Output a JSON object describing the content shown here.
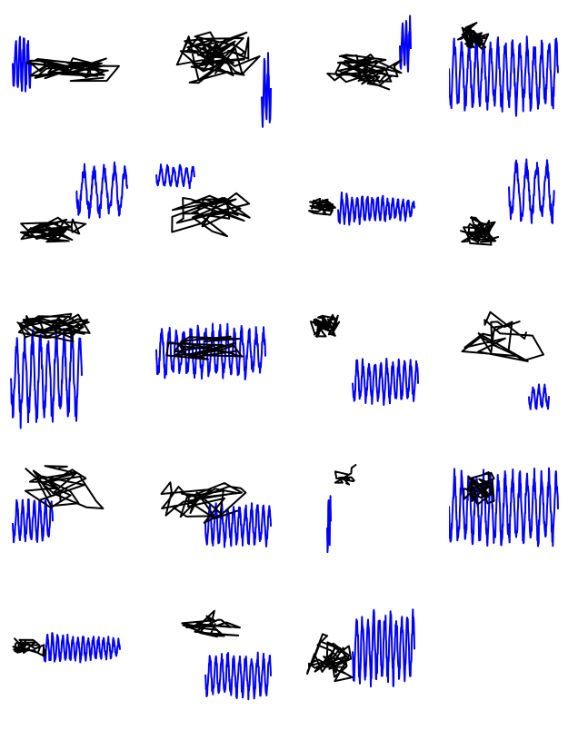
{
  "figure": {
    "rows": 5,
    "columns": 4,
    "panel_count": 19,
    "background_color": "#ffffff",
    "trajectory_color": "#000000",
    "signal_color": "#0000ff"
  },
  "panels": [
    {
      "id": 1,
      "motif": "dense-loop",
      "signal": "left-short",
      "trajectory": "tangle-horizontal"
    },
    {
      "id": 2,
      "motif": "star-loop",
      "signal": "right-tail",
      "trajectory": "tangle-wide"
    },
    {
      "id": 3,
      "motif": "loops-chain",
      "signal": "right-spike",
      "trajectory": "loops-horizontal"
    },
    {
      "id": 4,
      "motif": "tight-knot",
      "signal": "wide-band",
      "trajectory": "knot-top-left"
    },
    {
      "id": 5,
      "motif": "diagonal",
      "signal": "right-mid",
      "trajectory": "diagonal-cluster"
    },
    {
      "id": 6,
      "motif": "diagonal",
      "signal": "left-top",
      "trajectory": "diagonal-down"
    },
    {
      "id": 7,
      "motif": "small-knot",
      "signal": "decay-band",
      "trajectory": "knot-left"
    },
    {
      "id": 8,
      "motif": "dense-knot",
      "signal": "right-top",
      "trajectory": "knot-bottom-left"
    },
    {
      "id": 9,
      "motif": "loop-up",
      "signal": "left-long",
      "trajectory": "cluster-top"
    },
    {
      "id": 10,
      "motif": "diagonal",
      "signal": "full-band",
      "trajectory": "diagonal-up"
    },
    {
      "id": 11,
      "motif": "small-knot",
      "signal": "right-low",
      "trajectory": "knot-top-left"
    },
    {
      "id": 12,
      "motif": "long-drift",
      "signal": "tiny-right",
      "trajectory": "drift-down"
    },
    {
      "id": 13,
      "motif": "long-drift",
      "signal": "left-low",
      "trajectory": "drift-up"
    },
    {
      "id": 14,
      "motif": "diagonal",
      "signal": "right-low",
      "trajectory": "diagonal-down"
    },
    {
      "id": 15,
      "motif": "thin-line",
      "signal": "vertical",
      "trajectory": "line-up"
    },
    {
      "id": 16,
      "motif": "loops",
      "signal": "wide-band",
      "trajectory": "loops-left"
    },
    {
      "id": 17,
      "motif": "dense-knot",
      "signal": "decay-band",
      "trajectory": "knot-left"
    },
    {
      "id": 18,
      "motif": "open-loop",
      "signal": "right-low",
      "trajectory": "loop-top"
    },
    {
      "id": 19,
      "motif": "tangle",
      "signal": "right-tall",
      "trajectory": "tangle-left"
    }
  ]
}
